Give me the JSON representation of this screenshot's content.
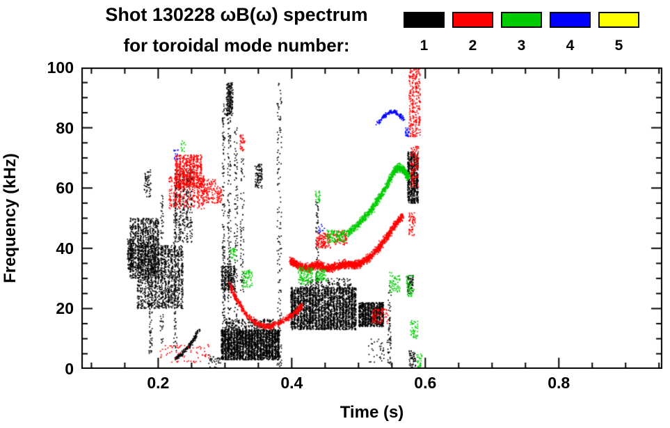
{
  "chart_data": {
    "type": "scatter",
    "title": "Shot 130228 ωB(ω) spectrum",
    "subtitle": "for toroidal mode number:",
    "xlabel": "Time (s)",
    "ylabel": "Frequency (kHz)",
    "xlim": [
      0.085,
      0.955
    ],
    "ylim": [
      0,
      100
    ],
    "grid": false,
    "legend_position": "top-right",
    "xticks": [
      {
        "v": 0.2,
        "label": "0.2"
      },
      {
        "v": 0.4,
        "label": "0.4"
      },
      {
        "v": 0.6,
        "label": "0.6"
      },
      {
        "v": 0.8,
        "label": "0.8"
      }
    ],
    "xminor": [
      0.1,
      0.15,
      0.25,
      0.3,
      0.35,
      0.45,
      0.5,
      0.55,
      0.65,
      0.7,
      0.75,
      0.85,
      0.9,
      0.95
    ],
    "yticks": [
      {
        "v": 0,
        "label": "0"
      },
      {
        "v": 20,
        "label": "20"
      },
      {
        "v": 40,
        "label": "40"
      },
      {
        "v": 60,
        "label": "60"
      },
      {
        "v": 80,
        "label": "80"
      },
      {
        "v": 100,
        "label": "100"
      }
    ],
    "yminor": [
      5,
      10,
      15,
      25,
      30,
      35,
      45,
      50,
      55,
      65,
      70,
      75,
      85,
      90,
      95
    ],
    "legend": [
      {
        "label": "1",
        "color": "#000000"
      },
      {
        "label": "2",
        "color": "#ff0000"
      },
      {
        "label": "3",
        "color": "#00cc00"
      },
      {
        "label": "4",
        "color": "#0000ff"
      },
      {
        "label": "5",
        "color": "#ffff00"
      }
    ],
    "series": [
      {
        "name": "toroidal mode n=1",
        "label": "1",
        "color": "#000000",
        "clusters": [
          {
            "kind": "box",
            "t": [
              0.157,
              0.202
            ],
            "f": [
              30,
              50
            ],
            "n": 1000,
            "streaks": 12
          },
          {
            "kind": "box",
            "t": [
              0.168,
              0.238
            ],
            "f": [
              20,
              41
            ],
            "n": 1300,
            "streaks": 14
          },
          {
            "kind": "box",
            "t": [
              0.154,
              0.162
            ],
            "f": [
              33,
              43
            ],
            "n": 120
          },
          {
            "kind": "box",
            "t": [
              0.186,
              0.191
            ],
            "f": [
              5,
              30
            ],
            "n": 70
          },
          {
            "kind": "box",
            "t": [
              0.203,
              0.208
            ],
            "f": [
              8,
              58
            ],
            "n": 90
          },
          {
            "kind": "box",
            "t": [
              0.223,
              0.228
            ],
            "f": [
              5,
              60
            ],
            "n": 90
          },
          {
            "kind": "box",
            "t": [
              0.224,
              0.252
            ],
            "f": [
              42,
              66
            ],
            "n": 360,
            "streaks": 5
          },
          {
            "kind": "box",
            "t": [
              0.179,
              0.189
            ],
            "f": [
              57,
              66
            ],
            "n": 60
          },
          {
            "kind": "path",
            "pts": [
              [
                0.226,
                3.5
              ],
              [
                0.236,
                5
              ],
              [
                0.246,
                7.5
              ],
              [
                0.254,
                10
              ],
              [
                0.261,
                12.8
              ]
            ],
            "w": 1,
            "n": 170
          },
          {
            "kind": "box",
            "t": [
              0.275,
              0.297
            ],
            "f": [
              0,
              5
            ],
            "n": 35
          },
          {
            "kind": "box",
            "t": [
              0.296,
              0.3
            ],
            "f": [
              8,
              88
            ],
            "n": 150
          },
          {
            "kind": "box",
            "t": [
              0.304,
              0.309
            ],
            "f": [
              5,
              95
            ],
            "n": 190
          },
          {
            "kind": "box",
            "t": [
              0.302,
              0.312
            ],
            "f": [
              84,
              95
            ],
            "n": 170
          },
          {
            "kind": "box",
            "t": [
              0.314,
              0.319
            ],
            "f": [
              10,
              80
            ],
            "n": 100
          },
          {
            "kind": "box",
            "t": [
              0.323,
              0.329
            ],
            "f": [
              25,
              70
            ],
            "n": 70
          },
          {
            "kind": "box",
            "t": [
              0.294,
              0.316
            ],
            "f": [
              26,
              34
            ],
            "n": 260,
            "streaks": 5
          },
          {
            "kind": "box",
            "t": [
              0.294,
              0.382
            ],
            "f": [
              3,
              13
            ],
            "n": 2500,
            "streaks": 20
          },
          {
            "kind": "box",
            "t": [
              0.3,
              0.375
            ],
            "f": [
              13,
              16.5
            ],
            "n": 220,
            "streaks": 16
          },
          {
            "kind": "box",
            "t": [
              0.378,
              0.385
            ],
            "f": [
              0,
              95
            ],
            "n": 150
          },
          {
            "kind": "box",
            "t": [
              0.345,
              0.356
            ],
            "f": [
              60,
              68
            ],
            "n": 90
          },
          {
            "kind": "box",
            "t": [
              0.398,
              0.497
            ],
            "f": [
              13,
              27
            ],
            "n": 2700,
            "streaks": 22
          },
          {
            "kind": "box",
            "t": [
              0.41,
              0.49
            ],
            "f": [
              27,
              30
            ],
            "n": 120,
            "streaks": 10
          },
          {
            "kind": "box",
            "t": [
              0.5,
              0.538
            ],
            "f": [
              14,
              22
            ],
            "n": 850,
            "streaks": 9
          },
          {
            "kind": "box",
            "t": [
              0.436,
              0.44
            ],
            "f": [
              27,
              56
            ],
            "n": 50
          },
          {
            "kind": "box",
            "t": [
              0.515,
              0.55
            ],
            "f": [
              2,
              10
            ],
            "n": 40
          },
          {
            "kind": "box",
            "t": [
              0.544,
              0.549
            ],
            "f": [
              0,
              28
            ],
            "n": 55
          },
          {
            "kind": "box",
            "t": [
              0.573,
              0.59
            ],
            "f": [
              55,
              72
            ],
            "n": 600,
            "streaks": 4
          },
          {
            "kind": "box",
            "t": [
              0.572,
              0.582
            ],
            "f": [
              25,
              31
            ],
            "n": 70
          },
          {
            "kind": "box",
            "t": [
              0.576,
              0.586
            ],
            "f": [
              0,
              6
            ],
            "n": 55
          }
        ]
      },
      {
        "name": "toroidal mode n=2",
        "label": "2",
        "color": "#ff0000",
        "clusters": [
          {
            "kind": "box",
            "t": [
              0.215,
              0.27
            ],
            "f": [
              53,
              64
            ],
            "n": 330,
            "streaks": 8
          },
          {
            "kind": "box",
            "t": [
              0.225,
              0.266
            ],
            "f": [
              60,
              71
            ],
            "n": 620,
            "streaks": 8
          },
          {
            "kind": "box",
            "t": [
              0.264,
              0.286
            ],
            "f": [
              55,
              63
            ],
            "n": 130
          },
          {
            "kind": "box",
            "t": [
              0.286,
              0.295
            ],
            "f": [
              55,
              61
            ],
            "n": 50
          },
          {
            "kind": "box",
            "t": [
              0.203,
              0.277
            ],
            "f": [
              2,
              8
            ],
            "n": 70
          },
          {
            "kind": "path",
            "pts": [
              [
                0.307,
                28
              ],
              [
                0.316,
                23.5
              ],
              [
                0.326,
                20
              ],
              [
                0.336,
                17
              ],
              [
                0.35,
                14.8
              ],
              [
                0.365,
                14
              ],
              [
                0.38,
                15
              ],
              [
                0.394,
                16.8
              ],
              [
                0.406,
                18.8
              ],
              [
                0.416,
                21
              ]
            ],
            "w": 1.4,
            "n": 620
          },
          {
            "kind": "path",
            "pts": [
              [
                0.398,
                36
              ],
              [
                0.41,
                34.2
              ],
              [
                0.424,
                33.4
              ],
              [
                0.438,
                34.6
              ],
              [
                0.452,
                33.2
              ],
              [
                0.466,
                33.8
              ],
              [
                0.48,
                34.8
              ],
              [
                0.494,
                34.4
              ],
              [
                0.505,
                35.2
              ]
            ],
            "w": 1.9,
            "n": 1300
          },
          {
            "kind": "path",
            "pts": [
              [
                0.505,
                35.2
              ],
              [
                0.517,
                37
              ],
              [
                0.53,
                40
              ],
              [
                0.543,
                44
              ],
              [
                0.555,
                47.8
              ],
              [
                0.566,
                50.8
              ]
            ],
            "w": 1.9,
            "n": 650
          },
          {
            "kind": "box",
            "t": [
              0.437,
              0.458
            ],
            "f": [
              40,
              45
            ],
            "n": 130
          },
          {
            "kind": "box",
            "t": [
              0.462,
              0.483
            ],
            "f": [
              41,
              46
            ],
            "n": 80
          },
          {
            "kind": "box",
            "t": [
              0.322,
              0.33
            ],
            "f": [
              72,
              78
            ],
            "n": 35
          },
          {
            "kind": "box",
            "t": [
              0.52,
              0.545
            ],
            "f": [
              15,
              20
            ],
            "n": 80
          },
          {
            "kind": "box",
            "t": [
              0.575,
              0.593
            ],
            "f": [
              77,
              100
            ],
            "n": 300,
            "streaks": 4
          },
          {
            "kind": "box",
            "t": [
              0.578,
              0.59
            ],
            "f": [
              60,
              74
            ],
            "n": 120
          },
          {
            "kind": "box",
            "t": [
              0.575,
              0.585
            ],
            "f": [
              44,
              52
            ],
            "n": 55
          }
        ]
      },
      {
        "name": "toroidal mode n=3",
        "label": "3",
        "color": "#00cc00",
        "clusters": [
          {
            "kind": "path",
            "pts": [
              [
                0.483,
                45
              ],
              [
                0.495,
                47
              ],
              [
                0.508,
                50
              ],
              [
                0.52,
                53
              ],
              [
                0.532,
                57
              ],
              [
                0.543,
                61
              ],
              [
                0.552,
                65
              ],
              [
                0.56,
                67
              ],
              [
                0.568,
                65.8
              ],
              [
                0.575,
                63.5
              ]
            ],
            "w": 1.8,
            "n": 1000
          },
          {
            "kind": "box",
            "t": [
              0.452,
              0.48
            ],
            "f": [
              42,
              46
            ],
            "n": 120
          },
          {
            "kind": "box",
            "t": [
              0.41,
              0.432
            ],
            "f": [
              28,
              34
            ],
            "n": 110
          },
          {
            "kind": "box",
            "t": [
              0.436,
              0.452
            ],
            "f": [
              29,
              33
            ],
            "n": 70
          },
          {
            "kind": "box",
            "t": [
              0.325,
              0.341
            ],
            "f": [
              27,
              33
            ],
            "n": 60
          },
          {
            "kind": "box",
            "t": [
              0.308,
              0.316
            ],
            "f": [
              36,
              40
            ],
            "n": 35
          },
          {
            "kind": "box",
            "t": [
              0.435,
              0.443
            ],
            "f": [
              55,
              59
            ],
            "n": 25
          },
          {
            "kind": "box",
            "t": [
              0.546,
              0.562
            ],
            "f": [
              25,
              32
            ],
            "n": 60
          },
          {
            "kind": "box",
            "t": [
              0.578,
              0.589
            ],
            "f": [
              10,
              16
            ],
            "n": 45
          },
          {
            "kind": "box",
            "t": [
              0.572,
              0.583
            ],
            "f": [
              24,
              31
            ],
            "n": 55
          },
          {
            "kind": "box",
            "t": [
              0.587,
              0.595
            ],
            "f": [
              0,
              5
            ],
            "n": 35
          },
          {
            "kind": "box",
            "t": [
              0.234,
              0.241
            ],
            "f": [
              72,
              76
            ],
            "n": 12
          }
        ]
      },
      {
        "name": "toroidal mode n=4",
        "label": "4",
        "color": "#0000ff",
        "clusters": [
          {
            "kind": "path",
            "pts": [
              [
                0.527,
                81
              ],
              [
                0.536,
                83.5
              ],
              [
                0.545,
                85
              ],
              [
                0.553,
                85.4
              ],
              [
                0.561,
                84.4
              ],
              [
                0.568,
                82.5
              ]
            ],
            "w": 0.9,
            "n": 140
          },
          {
            "kind": "box",
            "t": [
              0.57,
              0.577
            ],
            "f": [
              77,
              80
            ],
            "n": 22
          },
          {
            "kind": "box",
            "t": [
              0.44,
              0.449
            ],
            "f": [
              45,
              48
            ],
            "n": 12
          },
          {
            "kind": "box",
            "t": [
              0.223,
              0.23
            ],
            "f": [
              69,
              73
            ],
            "n": 12
          }
        ]
      },
      {
        "name": "toroidal mode n=5",
        "label": "5",
        "color": "#ffff00",
        "clusters": []
      }
    ]
  }
}
